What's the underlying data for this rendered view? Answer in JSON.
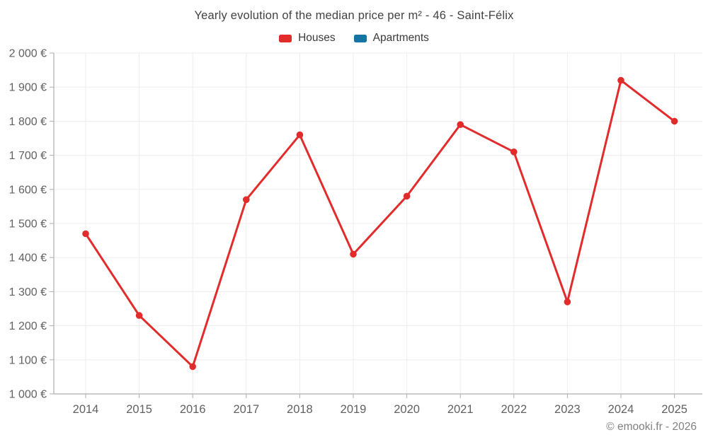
{
  "header": {
    "title": "Yearly evolution of the median price per m² - 46 - Saint-Félix"
  },
  "legend": {
    "items": [
      {
        "label": "Houses",
        "color": "#e22c2c"
      },
      {
        "label": "Apartments",
        "color": "#1673a3"
      }
    ]
  },
  "footer": {
    "credit": "© emooki.fr - 2026"
  },
  "colors": {
    "houses_series": "#e22c2c",
    "apartments_series": "#1673a3",
    "gridline": "#ededed",
    "axis_line": "#aeaeae",
    "tick_label": "#616161",
    "title_text": "#424242"
  },
  "chart_data": {
    "type": "line",
    "title": "Yearly evolution of the median price per m² - 46 - Saint-Félix",
    "categories": [
      "2014",
      "2015",
      "2016",
      "2017",
      "2018",
      "2019",
      "2020",
      "2021",
      "2022",
      "2023",
      "2024",
      "2025"
    ],
    "series": [
      {
        "name": "Houses",
        "color": "#e22c2c",
        "values": [
          1470,
          1230,
          1080,
          1570,
          1760,
          1410,
          1580,
          1790,
          1710,
          1270,
          1920,
          1800
        ]
      },
      {
        "name": "Apartments",
        "color": "#1673a3",
        "values": []
      }
    ],
    "xlabel": "",
    "ylabel": "",
    "ylim": [
      1000,
      2000
    ],
    "y_tick_step": 100,
    "y_tick_labels": [
      "1 000 €",
      "1 100 €",
      "1 200 €",
      "1 300 €",
      "1 400 €",
      "1 500 €",
      "1 600 €",
      "1 700 €",
      "1 800 €",
      "1 900 €",
      "2 000 €"
    ],
    "unit": "€",
    "grid": true,
    "legend_position": "top",
    "marker": "circle"
  }
}
